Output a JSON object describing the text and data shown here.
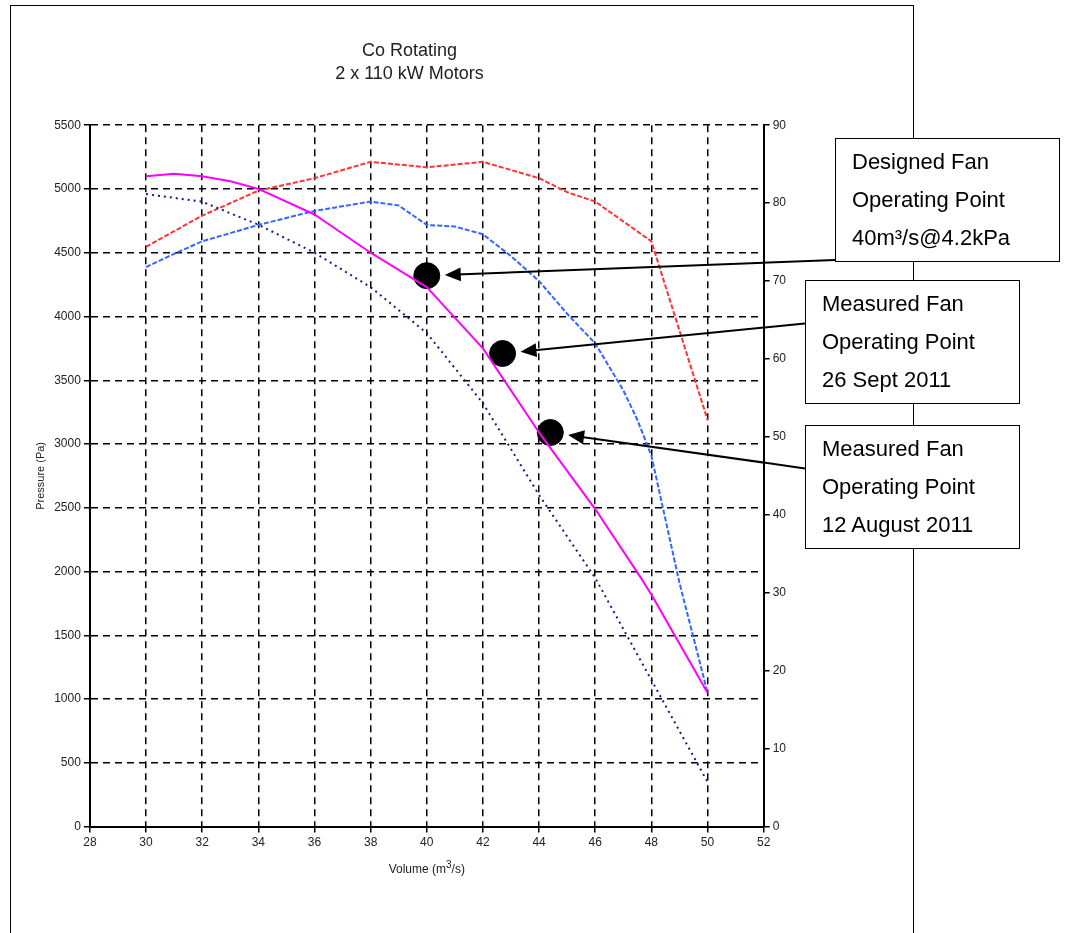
{
  "chart_data": {
    "type": "line",
    "title": "Co Rotating",
    "subtitle": "2 x 110 kW Motors",
    "xlabel": "Volume (m$^{3}$/s)",
    "ylabel": "Pressure (Pa)",
    "xlim": [
      28,
      52
    ],
    "xticks": [
      28,
      30,
      32,
      34,
      36,
      38,
      40,
      42,
      44,
      46,
      48,
      50,
      52
    ],
    "ylim": [
      0,
      5500
    ],
    "yticks": [
      0,
      500,
      1000,
      1500,
      2000,
      2500,
      3000,
      3500,
      4000,
      4500,
      5000,
      5500
    ],
    "y2lim": [
      0,
      90
    ],
    "y2ticks": [
      0,
      10,
      20,
      30,
      40,
      50,
      60,
      70,
      80,
      90
    ],
    "grid": true,
    "legend": false,
    "marker": "none",
    "series": [
      {
        "color": "#ff00ff",
        "line_style": "solid",
        "x": [
          30,
          31,
          32,
          33,
          34,
          36,
          38,
          40,
          42,
          44,
          46,
          47.6,
          48,
          50
        ],
        "values": [
          5100,
          5120,
          5100,
          5060,
          5000,
          4800,
          4500,
          4230,
          3750,
          3090,
          2490,
          1960,
          1820,
          1050
        ]
      },
      {
        "color": "#1a1a80",
        "line_style": "dotted",
        "x": [
          30,
          32,
          34,
          36,
          38,
          40,
          42,
          44,
          46,
          48,
          50
        ],
        "values": [
          4960,
          4900,
          4720,
          4500,
          4230,
          3870,
          3320,
          2600,
          1950,
          1150,
          350
        ]
      },
      {
        "color": "#ff3333",
        "line_style": "dashed",
        "axis": "y2",
        "x": [
          30,
          32,
          34,
          36,
          38,
          40,
          42,
          44,
          45,
          46,
          48,
          50
        ],
        "values": [
          74.4,
          78.4,
          81.6,
          83.2,
          85.3,
          84.6,
          85.3,
          83.2,
          81.4,
          80.2,
          75.1,
          52.2
        ]
      },
      {
        "color": "#3366ff",
        "line_style": "dashed",
        "axis": "y2",
        "x": [
          30,
          31,
          32,
          34,
          36,
          38,
          39,
          40,
          41,
          42,
          43,
          44,
          45,
          46,
          47,
          47.5,
          48,
          49,
          50
        ],
        "values": [
          71.8,
          73.5,
          75.1,
          77.2,
          79.0,
          80.2,
          79.7,
          77.2,
          77.0,
          76.0,
          73.2,
          70.0,
          65.8,
          62.0,
          56.0,
          52.2,
          47.6,
          31.3,
          17.2
        ]
      },
      {
        "type": "scatter",
        "color": "#000000",
        "marker": "circle",
        "x": [
          40.0,
          42.7,
          44.4
        ],
        "values": [
          4320,
          3710,
          3090
        ]
      }
    ],
    "annotations": [
      "Designed Fan Operating Point 40m³/s@4.2kPa",
      "Measured Fan Operating Point 26 Sept 2011",
      "Measured Fan Operating Point 12 August 2011"
    ]
  }
}
